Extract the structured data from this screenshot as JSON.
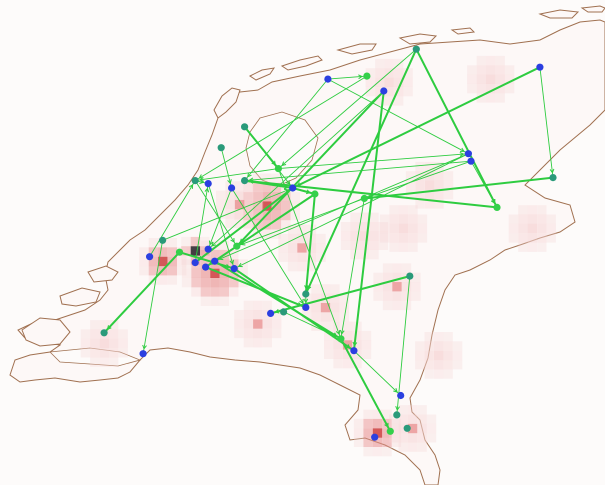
{
  "colors": {
    "background": "#fdfbfa",
    "land": "#fdf8f7",
    "coast": "#a07050",
    "density_low": "#f6d6d6",
    "density_mid": "#e89090",
    "density_high": "#c83030",
    "density_max": "#181018",
    "route": "#2ecc40",
    "node_blue": "#2b3fe0",
    "node_teal": "#2a9a7a",
    "node_green": "#34d04a"
  },
  "nodes": [
    {
      "id": "n01",
      "lon": 6.0,
      "lat": 53.42,
      "kind": "teal"
    },
    {
      "id": "n02",
      "lon": 6.95,
      "lat": 53.3,
      "kind": "blue"
    },
    {
      "id": "n03",
      "lon": 5.32,
      "lat": 53.22,
      "kind": "blue"
    },
    {
      "id": "n04",
      "lon": 5.62,
      "lat": 53.24,
      "kind": "green"
    },
    {
      "id": "n05",
      "lon": 5.75,
      "lat": 53.14,
      "kind": "blue"
    },
    {
      "id": "n06",
      "lon": 4.68,
      "lat": 52.9,
      "kind": "teal"
    },
    {
      "id": "n07",
      "lon": 4.5,
      "lat": 52.76,
      "kind": "teal"
    },
    {
      "id": "n08",
      "lon": 4.94,
      "lat": 52.62,
      "kind": "green"
    },
    {
      "id": "n09",
      "lon": 6.4,
      "lat": 52.72,
      "kind": "blue"
    },
    {
      "id": "n10",
      "lon": 6.42,
      "lat": 52.67,
      "kind": "blue"
    },
    {
      "id": "n11",
      "lon": 7.05,
      "lat": 52.56,
      "kind": "teal"
    },
    {
      "id": "n12",
      "lon": 4.3,
      "lat": 52.54,
      "kind": "teal"
    },
    {
      "id": "n13",
      "lon": 4.4,
      "lat": 52.52,
      "kind": "blue"
    },
    {
      "id": "n14",
      "lon": 4.68,
      "lat": 52.54,
      "kind": "teal"
    },
    {
      "id": "n15",
      "lon": 4.58,
      "lat": 52.49,
      "kind": "blue"
    },
    {
      "id": "n16",
      "lon": 5.05,
      "lat": 52.49,
      "kind": "blue"
    },
    {
      "id": "n17",
      "lon": 5.22,
      "lat": 52.45,
      "kind": "green"
    },
    {
      "id": "n18",
      "lon": 5.6,
      "lat": 52.42,
      "kind": "green"
    },
    {
      "id": "n19",
      "lon": 6.62,
      "lat": 52.36,
      "kind": "green"
    },
    {
      "id": "n20",
      "lon": 4.05,
      "lat": 52.14,
      "kind": "teal"
    },
    {
      "id": "n21",
      "lon": 4.18,
      "lat": 52.06,
      "kind": "green"
    },
    {
      "id": "n22",
      "lon": 3.95,
      "lat": 52.03,
      "kind": "blue"
    },
    {
      "id": "n23",
      "lon": 4.4,
      "lat": 52.08,
      "kind": "blue"
    },
    {
      "id": "n24",
      "lon": 4.45,
      "lat": 52.0,
      "kind": "blue"
    },
    {
      "id": "n25",
      "lon": 4.3,
      "lat": 51.99,
      "kind": "blue"
    },
    {
      "id": "n26",
      "lon": 4.38,
      "lat": 51.96,
      "kind": "blue"
    },
    {
      "id": "n27",
      "lon": 4.6,
      "lat": 51.95,
      "kind": "blue"
    },
    {
      "id": "n28",
      "lon": 4.62,
      "lat": 52.1,
      "kind": "green"
    },
    {
      "id": "n29",
      "lon": 5.15,
      "lat": 51.78,
      "kind": "teal"
    },
    {
      "id": "n30",
      "lon": 5.95,
      "lat": 51.9,
      "kind": "teal"
    },
    {
      "id": "n31",
      "lon": 4.88,
      "lat": 51.65,
      "kind": "blue"
    },
    {
      "id": "n32",
      "lon": 4.98,
      "lat": 51.66,
      "kind": "teal"
    },
    {
      "id": "n33",
      "lon": 5.15,
      "lat": 51.69,
      "kind": "blue"
    },
    {
      "id": "n34",
      "lon": 3.6,
      "lat": 51.52,
      "kind": "teal"
    },
    {
      "id": "n35",
      "lon": 3.9,
      "lat": 51.38,
      "kind": "blue"
    },
    {
      "id": "n36",
      "lon": 5.42,
      "lat": 51.48,
      "kind": "green"
    },
    {
      "id": "n37",
      "lon": 5.52,
      "lat": 51.4,
      "kind": "blue"
    },
    {
      "id": "n38",
      "lon": 5.88,
      "lat": 51.1,
      "kind": "blue"
    },
    {
      "id": "n39",
      "lon": 5.85,
      "lat": 50.97,
      "kind": "teal"
    },
    {
      "id": "n40",
      "lon": 5.93,
      "lat": 50.88,
      "kind": "teal"
    },
    {
      "id": "n41",
      "lon": 5.8,
      "lat": 50.86,
      "kind": "green"
    },
    {
      "id": "n42",
      "lon": 5.68,
      "lat": 50.82,
      "kind": "blue"
    }
  ],
  "routes": [
    {
      "from": "n01",
      "to": "n29",
      "weight": "heavy"
    },
    {
      "from": "n01",
      "to": "n19",
      "weight": "heavy"
    },
    {
      "from": "n01",
      "to": "n08",
      "weight": "light"
    },
    {
      "from": "n02",
      "to": "n11",
      "weight": "light"
    },
    {
      "from": "n02",
      "to": "n16",
      "weight": "heavy"
    },
    {
      "from": "n03",
      "to": "n04",
      "weight": "light"
    },
    {
      "from": "n03",
      "to": "n09",
      "weight": "light"
    },
    {
      "from": "n03",
      "to": "n14",
      "weight": "light"
    },
    {
      "from": "n05",
      "to": "n37",
      "weight": "heavy"
    },
    {
      "from": "n05",
      "to": "n28",
      "weight": "heavy"
    },
    {
      "from": "n05",
      "to": "n23",
      "weight": "light"
    },
    {
      "from": "n06",
      "to": "n08",
      "weight": "heavy"
    },
    {
      "from": "n06",
      "to": "n16",
      "weight": "light"
    },
    {
      "from": "n07",
      "to": "n15",
      "weight": "light"
    },
    {
      "from": "n08",
      "to": "n09",
      "weight": "light"
    },
    {
      "from": "n08",
      "to": "n12",
      "weight": "light"
    },
    {
      "from": "n09",
      "to": "n27",
      "weight": "light"
    },
    {
      "from": "n10",
      "to": "n14",
      "weight": "light"
    },
    {
      "from": "n10",
      "to": "n18",
      "weight": "light"
    },
    {
      "from": "n11",
      "to": "n18",
      "weight": "heavy"
    },
    {
      "from": "n12",
      "to": "n13",
      "weight": "light"
    },
    {
      "from": "n12",
      "to": "n28",
      "weight": "light"
    },
    {
      "from": "n13",
      "to": "n27",
      "weight": "light"
    },
    {
      "from": "n14",
      "to": "n16",
      "weight": "heavy"
    },
    {
      "from": "n15",
      "to": "n23",
      "weight": "light"
    },
    {
      "from": "n15",
      "to": "n33",
      "weight": "light"
    },
    {
      "from": "n16",
      "to": "n17",
      "weight": "heavy"
    },
    {
      "from": "n16",
      "to": "n25",
      "weight": "heavy"
    },
    {
      "from": "n17",
      "to": "n26",
      "weight": "heavy"
    },
    {
      "from": "n17",
      "to": "n29",
      "weight": "heavy"
    },
    {
      "from": "n18",
      "to": "n28",
      "weight": "light"
    },
    {
      "from": "n18",
      "to": "n36",
      "weight": "light"
    },
    {
      "from": "n19",
      "to": "n14",
      "weight": "heavy"
    },
    {
      "from": "n20",
      "to": "n35",
      "weight": "light"
    },
    {
      "from": "n20",
      "to": "n16",
      "weight": "light"
    },
    {
      "from": "n21",
      "to": "n27",
      "weight": "heavy"
    },
    {
      "from": "n21",
      "to": "n34",
      "weight": "heavy"
    },
    {
      "from": "n22",
      "to": "n12",
      "weight": "light"
    },
    {
      "from": "n24",
      "to": "n36",
      "weight": "heavy"
    },
    {
      "from": "n25",
      "to": "n13",
      "weight": "light"
    },
    {
      "from": "n26",
      "to": "n33",
      "weight": "heavy"
    },
    {
      "from": "n27",
      "to": "n37",
      "weight": "heavy"
    },
    {
      "from": "n29",
      "to": "n33",
      "weight": "light"
    },
    {
      "from": "n30",
      "to": "n31",
      "weight": "heavy"
    },
    {
      "from": "n30",
      "to": "n39",
      "weight": "light"
    },
    {
      "from": "n32",
      "to": "n36",
      "weight": "light"
    },
    {
      "from": "n36",
      "to": "n41",
      "weight": "heavy"
    },
    {
      "from": "n37",
      "to": "n38",
      "weight": "light"
    },
    {
      "from": "n09",
      "to": "n24",
      "weight": "light"
    },
    {
      "from": "n04",
      "to": "n12",
      "weight": "light"
    },
    {
      "from": "n08",
      "to": "n36",
      "weight": "light"
    },
    {
      "from": "n10",
      "to": "n19",
      "weight": "light"
    }
  ],
  "density": [
    {
      "lon": 4.85,
      "lat": 52.37,
      "level": 3,
      "spread": 0.18
    },
    {
      "lon": 4.45,
      "lat": 51.92,
      "level": 3,
      "spread": 0.16
    },
    {
      "lon": 4.3,
      "lat": 52.07,
      "level": 4,
      "spread": 0.06
    },
    {
      "lon": 4.05,
      "lat": 52.0,
      "level": 3,
      "spread": 0.1
    },
    {
      "lon": 5.12,
      "lat": 52.09,
      "level": 2,
      "spread": 0.14
    },
    {
      "lon": 4.64,
      "lat": 52.38,
      "level": 2,
      "spread": 0.1
    },
    {
      "lon": 5.47,
      "lat": 51.44,
      "level": 2,
      "spread": 0.12
    },
    {
      "lon": 5.7,
      "lat": 50.85,
      "level": 3,
      "spread": 0.1
    },
    {
      "lon": 5.97,
      "lat": 50.88,
      "level": 2,
      "spread": 0.08
    },
    {
      "lon": 4.78,
      "lat": 51.58,
      "level": 2,
      "spread": 0.1
    },
    {
      "lon": 5.85,
      "lat": 51.83,
      "level": 2,
      "spread": 0.1
    },
    {
      "lon": 6.57,
      "lat": 53.22,
      "level": 1,
      "spread": 0.14
    },
    {
      "lon": 5.79,
      "lat": 53.2,
      "level": 1,
      "spread": 0.1
    },
    {
      "lon": 6.89,
      "lat": 52.22,
      "level": 1,
      "spread": 0.14
    },
    {
      "lon": 6.1,
      "lat": 52.51,
      "level": 1,
      "spread": 0.1
    },
    {
      "lon": 5.6,
      "lat": 52.17,
      "level": 1,
      "spread": 0.12
    },
    {
      "lon": 6.17,
      "lat": 51.37,
      "level": 1,
      "spread": 0.1
    },
    {
      "lon": 3.6,
      "lat": 51.45,
      "level": 1,
      "spread": 0.1
    },
    {
      "lon": 5.3,
      "lat": 51.69,
      "level": 2,
      "spread": 0.08
    },
    {
      "lon": 5.9,
      "lat": 52.22,
      "level": 1,
      "spread": 0.1
    }
  ]
}
